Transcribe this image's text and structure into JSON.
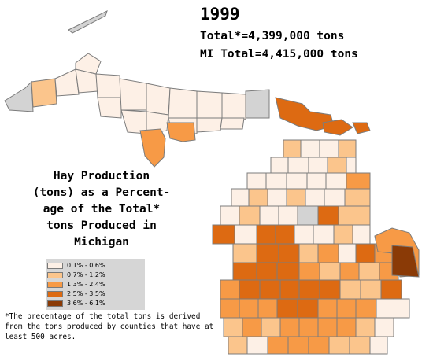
{
  "header": {
    "year": "1999",
    "total_line": "Total*=4,399,000 tons",
    "mi_total_line": "MI Total=4,415,000 tons"
  },
  "title_lines": [
    "Hay Production",
    "(tons) as a Percent-",
    "age of the Total*",
    "tons Produced in",
    "Michigan"
  ],
  "legend": {
    "items": [
      {
        "label": "0.1% - 0.6%",
        "color": "#fdf0e6"
      },
      {
        "label": "0.7% - 1.2%",
        "color": "#fbc58c"
      },
      {
        "label": "1.3% - 2.4%",
        "color": "#f79a46"
      },
      {
        "label": "2.5% - 3.5%",
        "color": "#dd6a12"
      },
      {
        "label": "3.6% - 6.1%",
        "color": "#8a3a06"
      }
    ]
  },
  "footnote": "*The precentage of the total tons is derived from the tons produced by counties that have at least 500 acres.",
  "colors": {
    "no_data": "#d3d3d3",
    "border": "#7c7c7c"
  }
}
